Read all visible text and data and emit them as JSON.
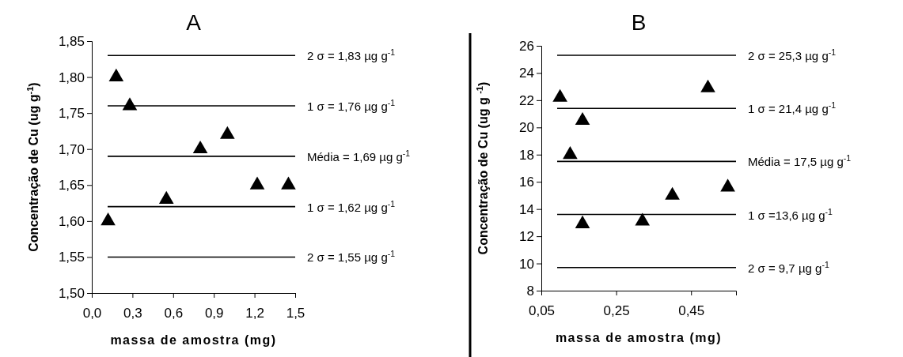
{
  "chart_data": [
    {
      "type": "scatter",
      "title": "A",
      "xlabel": "massa de amostra (mg)",
      "ylabel": "Concentração de Cu (ug g$^{-1}$)",
      "marker": "triangle",
      "grid": false,
      "xlim": [
        0,
        1.5
      ],
      "xticks": [
        {
          "value": 0,
          "label": "0,0"
        },
        {
          "value": 0.3,
          "label": "0,3"
        },
        {
          "value": 0.6,
          "label": "0,6"
        },
        {
          "value": 0.9,
          "label": "0,9"
        },
        {
          "value": 1.2,
          "label": "1,2"
        },
        {
          "value": 1.5,
          "label": "1,5"
        }
      ],
      "ylim": [
        1.5,
        1.85
      ],
      "yticks": [
        {
          "value": 1.5,
          "label": "1,50"
        },
        {
          "value": 1.55,
          "label": "1,55"
        },
        {
          "value": 1.6,
          "label": "1,60"
        },
        {
          "value": 1.65,
          "label": "1,65"
        },
        {
          "value": 1.7,
          "label": "1,70"
        },
        {
          "value": 1.75,
          "label": "1,75"
        },
        {
          "value": 1.8,
          "label": "1,80"
        },
        {
          "value": 1.85,
          "label": "1,85"
        }
      ],
      "series": [
        {
          "color": "#000000",
          "x": [
            0.12,
            0.18,
            0.28,
            0.55,
            0.8,
            1.0,
            1.22,
            1.45
          ],
          "values": [
            1.6,
            1.8,
            1.76,
            1.63,
            1.7,
            1.72,
            1.65,
            1.65
          ]
        }
      ],
      "ref_lines": [
        {
          "axis": "y",
          "value": 1.83,
          "label": "2 σ = 1,83 µg g$^{-1}$",
          "color": "#000000"
        },
        {
          "axis": "y",
          "value": 1.76,
          "label": "1 σ = 1,76 µg g$^{-1}$",
          "color": "#000000"
        },
        {
          "axis": "y",
          "value": 1.69,
          "label": "Média = 1,69 µg g$^{-1}$",
          "color": "#000000"
        },
        {
          "axis": "y",
          "value": 1.62,
          "label": "1 σ = 1,62 µg g$^{-1}$",
          "color": "#000000"
        },
        {
          "axis": "y",
          "value": 1.55,
          "label": "2 σ = 1,55 µg g$^{-1}$",
          "color": "#000000"
        }
      ]
    },
    {
      "type": "scatter",
      "title": "B",
      "xlabel": "massa de amostra (mg)",
      "ylabel": "Concentração de Cu (ug g $^{-1}$)",
      "marker": "triangle",
      "grid": false,
      "xlim": [
        0.05,
        0.57
      ],
      "xticks": [
        {
          "value": 0.05,
          "label": "0,05"
        },
        {
          "value": 0.25,
          "label": "0,25"
        },
        {
          "value": 0.45,
          "label": "0,45"
        }
      ],
      "ylim": [
        8,
        26
      ],
      "yticks": [
        8,
        10,
        12,
        14,
        16,
        18,
        20,
        22,
        24,
        26
      ],
      "series": [
        {
          "color": "#000000",
          "x": [
            0.1,
            0.127,
            0.16,
            0.16,
            0.32,
            0.4,
            0.495,
            0.548
          ],
          "values": [
            22.2,
            18,
            20.5,
            12.9,
            13.1,
            15,
            22.9,
            15.6
          ]
        }
      ],
      "ref_lines": [
        {
          "axis": "y",
          "value": 25.3,
          "label": "2 σ = 25,3 µg g$^{-1}$",
          "color": "#000000"
        },
        {
          "axis": "y",
          "value": 21.4,
          "label": "1 σ = 21,4 µg g$^{-1}$",
          "color": "#000000"
        },
        {
          "axis": "y",
          "value": 17.5,
          "label": "Média = 17,5 µg g$^{-1}$",
          "color": "#000000"
        },
        {
          "axis": "y",
          "value": 13.6,
          "label": "1 σ =13,6 µg g$^{-1}$",
          "color": "#000000"
        },
        {
          "axis": "y",
          "value": 9.7,
          "label": "2 σ = 9,7 µg g$^{-1}$",
          "color": "#000000"
        }
      ]
    }
  ]
}
